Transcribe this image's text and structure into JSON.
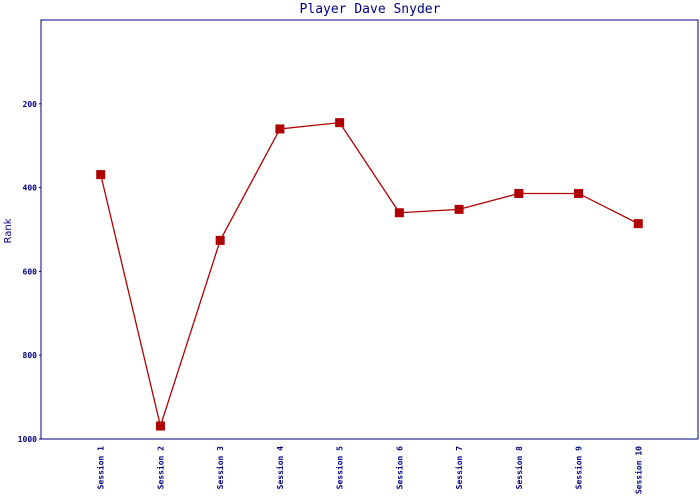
{
  "chart_data": {
    "type": "line",
    "title": "Player Dave Snyder",
    "y_label": "Rank",
    "categories": [
      "Session 1",
      "Session 2",
      "Session 3",
      "Session 4",
      "Session 5",
      "Session 6",
      "Session 7",
      "Session 8",
      "Session 9",
      "Session 10"
    ],
    "series": [
      {
        "name": "Rank",
        "color": "#b00000",
        "values": [
          369,
          969,
          526,
          260,
          245,
          460,
          452,
          414,
          414,
          486
        ]
      }
    ],
    "ylim": [
      0,
      1000
    ],
    "yticks": [
      200,
      400,
      600,
      800,
      1000
    ],
    "y_inverted": true,
    "grid": false
  }
}
